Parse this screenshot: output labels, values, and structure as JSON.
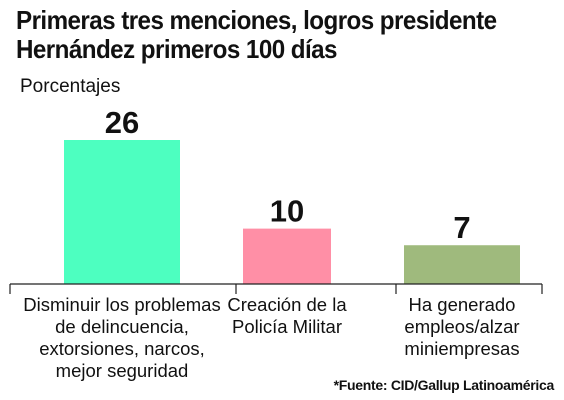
{
  "title_lines": [
    "Primeras tres menciones, logros presidente",
    "Hernández primeros 100 días"
  ],
  "unit_label": "Porcentajes",
  "source": "*Fuente: CID/Gallup Latinoamérica",
  "colors": {
    "bar_1": "#4dffc0",
    "bar_2": "#ff8fa6",
    "bar_3": "#9fba7d",
    "axis": "#222222",
    "text": "#111111"
  },
  "chart_data": {
    "type": "bar",
    "title": "Primeras tres menciones, logros presidente Hernández primeros 100 días",
    "ylabel": "Porcentajes",
    "categories": [
      [
        "Disminuir los problemas",
        "de delincuencia,",
        "extorsiones, narcos,",
        "mejor seguridad"
      ],
      [
        "Creación de la",
        "Policía Militar"
      ],
      [
        "Ha generado",
        "empleos/alzar",
        "miniempresas"
      ]
    ],
    "values": [
      26,
      10,
      7
    ],
    "ylim": [
      0,
      26
    ],
    "grid": false,
    "legend": "none"
  }
}
